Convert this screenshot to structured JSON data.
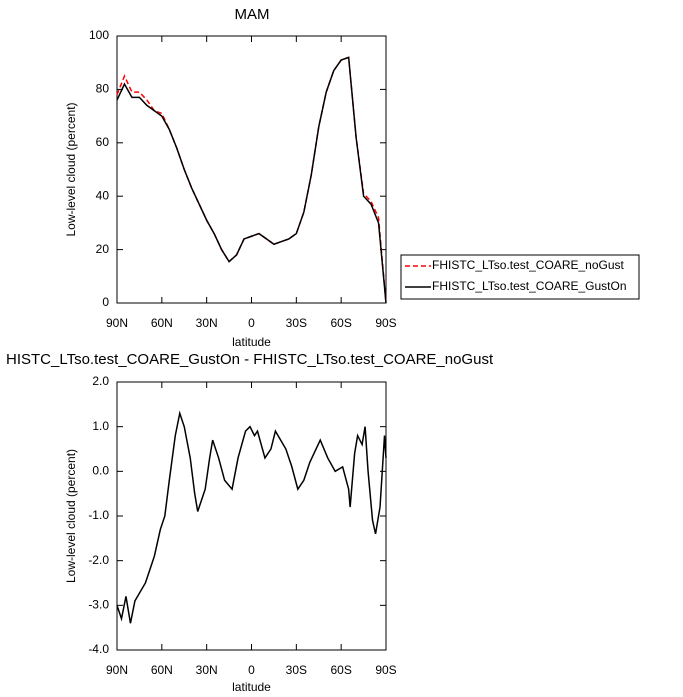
{
  "chart_data": [
    {
      "type": "line",
      "title": "MAM",
      "x_label": "latitude",
      "y_label": "Low-level cloud (percent)",
      "x": [
        90,
        85,
        80,
        75,
        70,
        65,
        60,
        55,
        50,
        45,
        40,
        35,
        30,
        25,
        20,
        15,
        10,
        5,
        0,
        -5,
        -10,
        -15,
        -20,
        -25,
        -30,
        -35,
        -40,
        -45,
        -50,
        -55,
        -60,
        -65,
        -70,
        -75,
        -80,
        -85,
        -90
      ],
      "series": [
        {
          "name": "FHISTC_LTso.test_COARE_noGust",
          "color": "#ff0000",
          "line_style": "dashed",
          "values": [
            78,
            85,
            79,
            79,
            76,
            72,
            71,
            65,
            58,
            50,
            43,
            37,
            31,
            26,
            20,
            15.5,
            18,
            24,
            25,
            26,
            24,
            22,
            23,
            24,
            26,
            34,
            48,
            66,
            79,
            87,
            91,
            92,
            62,
            41,
            38,
            32,
            0
          ]
        },
        {
          "name": "FHISTC_LTso.test_COARE_GustOn",
          "color": "#000000",
          "line_style": "solid",
          "values": [
            76,
            82,
            77,
            77,
            74,
            72,
            70,
            65,
            58,
            50,
            43,
            37,
            31,
            26,
            20,
            15.5,
            18,
            24,
            25,
            26,
            24,
            22,
            23,
            24,
            26,
            34,
            48,
            66,
            79,
            87,
            91,
            92,
            62,
            40,
            37,
            30,
            0
          ]
        }
      ],
      "xlim": [
        90,
        -90
      ],
      "xticks": [
        {
          "value": 90,
          "label": "90N"
        },
        {
          "value": 60,
          "label": "60N"
        },
        {
          "value": 30,
          "label": "30N"
        },
        0,
        {
          "value": -30,
          "label": "30S"
        },
        {
          "value": -60,
          "label": "60S"
        },
        {
          "value": -90,
          "label": "90S"
        }
      ],
      "ylim": [
        0,
        100
      ],
      "yticks": [
        0,
        20,
        40,
        60,
        80,
        100
      ],
      "legend": "right"
    },
    {
      "type": "line",
      "title": "HISTC_LTso.test_COARE_GustOn - FHISTC_LTso.test_COARE_noGust",
      "x_label": "latitude",
      "y_label": "Low-level cloud (percent)",
      "x": [
        90,
        87,
        84,
        81,
        78,
        71,
        68,
        65,
        61,
        58,
        55,
        51,
        48,
        45,
        41,
        38,
        36,
        32,
        31,
        28,
        26,
        22,
        18,
        13,
        9,
        4,
        1,
        -2,
        -4,
        -9,
        -13,
        -16,
        -23,
        -27,
        -31,
        -35,
        -39,
        -46,
        -51,
        -56,
        -61,
        -65,
        -66,
        -69,
        -71,
        -74,
        -76,
        -78,
        -81,
        -83,
        -86,
        -89,
        -90
      ],
      "series": [
        {
          "name": null,
          "color": "#000000",
          "line_style": "solid",
          "values": [
            -3.0,
            -3.3,
            -2.8,
            -3.4,
            -2.9,
            -2.5,
            -2.2,
            -1.9,
            -1.3,
            -1.0,
            -0.2,
            0.8,
            1.3,
            1.0,
            0.3,
            -0.5,
            -0.9,
            -0.5,
            -0.4,
            0.3,
            0.7,
            0.3,
            -0.2,
            -0.4,
            0.3,
            0.9,
            1.0,
            0.8,
            0.9,
            0.3,
            0.5,
            0.9,
            0.5,
            0.1,
            -0.4,
            -0.2,
            0.2,
            0.7,
            0.3,
            0.0,
            0.1,
            -0.4,
            -0.8,
            0.4,
            0.8,
            0.6,
            1.0,
            0.0,
            -1.1,
            -1.4,
            -0.8,
            0.8,
            0.3
          ]
        }
      ],
      "xlim": [
        90,
        -90
      ],
      "xticks": [
        {
          "value": 90,
          "label": "90N"
        },
        {
          "value": 60,
          "label": "60N"
        },
        {
          "value": 30,
          "label": "30N"
        },
        0,
        {
          "value": -30,
          "label": "30S"
        },
        {
          "value": -60,
          "label": "60S"
        },
        {
          "value": -90,
          "label": "90S"
        }
      ],
      "ylim": [
        -4,
        2
      ],
      "yticks": [
        {
          "value": -4,
          "label": "-4.0"
        },
        {
          "value": -3,
          "label": "-3.0"
        },
        {
          "value": -2,
          "label": "-2.0"
        },
        {
          "value": -1,
          "label": "-1.0"
        },
        {
          "value": 0,
          "label": "0.0"
        },
        {
          "value": 1,
          "label": "1.0"
        },
        {
          "value": 2,
          "label": "2.0"
        }
      ]
    }
  ]
}
